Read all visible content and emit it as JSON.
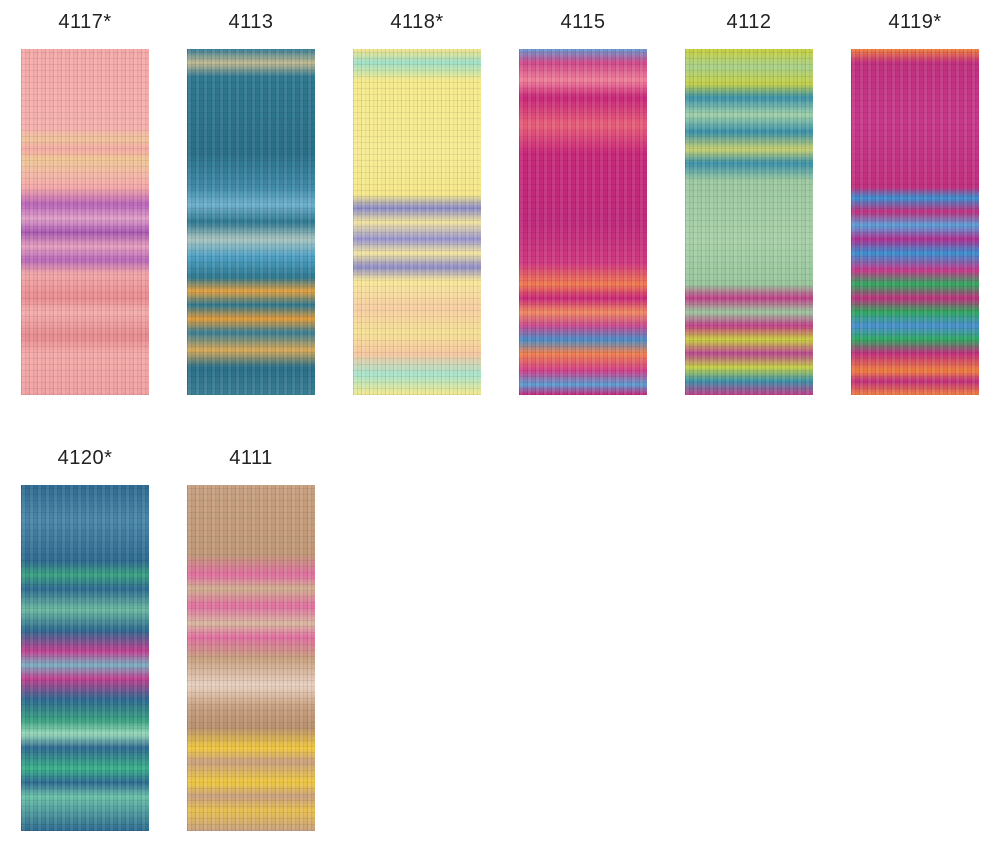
{
  "swatches": [
    {
      "label": "4117*"
    },
    {
      "label": "4113"
    },
    {
      "label": "4118*"
    },
    {
      "label": "4115"
    },
    {
      "label": "4112"
    },
    {
      "label": "4119*"
    },
    {
      "label": "4120*"
    },
    {
      "label": "4111"
    }
  ]
}
